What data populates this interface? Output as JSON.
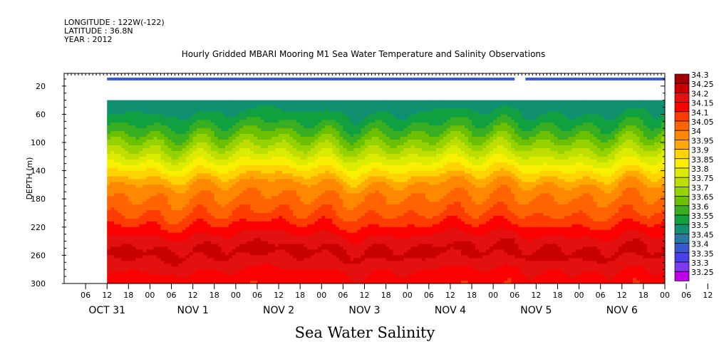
{
  "header": {
    "longitude": "LONGITUDE : 122W(-122)",
    "latitude": "LATITUDE : 36.8N",
    "year": "YEAR : 2012"
  },
  "title": "Hourly Gridded MBARI Mooring M1 Sea Water Temperature and Salinity Observations",
  "subtitle": "Sea Water Salinity",
  "chart_data": {
    "type": "heatmap",
    "variable": "Sea Water Salinity",
    "ylabel": "DEPTH (m)",
    "y_ticks": [
      20,
      60,
      100,
      140,
      180,
      220,
      260,
      300
    ],
    "ylim": [
      300,
      2
    ],
    "x_hour_ticks": [
      "06",
      "12",
      "18",
      "00",
      "06",
      "12",
      "18",
      "00",
      "06",
      "12",
      "18",
      "00",
      "06",
      "12",
      "18",
      "00",
      "06",
      "12",
      "18",
      "00",
      "06",
      "12",
      "18",
      "00",
      "06",
      "12",
      "18",
      "00",
      "06",
      "12",
      "18",
      "00"
    ],
    "x_day_labels": [
      "OCT 31",
      "NOV  1",
      "NOV  2",
      "NOV  3",
      "NOV  4",
      "NOV  5",
      "NOV  6"
    ],
    "colorbar": {
      "levels": [
        "34.3",
        "34.25",
        "34.2",
        "34.15",
        "34.1",
        "34.05",
        "34",
        "33.95",
        "33.9",
        "33.85",
        "33.8",
        "33.75",
        "33.7",
        "33.65",
        "33.6",
        "33.55",
        "33.5",
        "33.45",
        "33.4",
        "33.35",
        "33.3",
        "33.25"
      ],
      "colors": [
        "#a00000",
        "#c80000",
        "#e41010",
        "#fc0000",
        "#ff3c00",
        "#ff6400",
        "#ff8800",
        "#ffaa00",
        "#ffd400",
        "#f8f000",
        "#dcec00",
        "#bede00",
        "#96d200",
        "#6cc000",
        "#38ae20",
        "#10a040",
        "#109070",
        "#2878a0",
        "#3858d0",
        "#4840e8",
        "#8038f0",
        "#c000e8"
      ]
    },
    "profile": [
      {
        "depth": 10,
        "salinity": 33.42
      },
      {
        "depth": 40,
        "salinity": 33.52
      },
      {
        "depth": 60,
        "salinity": 33.56
      },
      {
        "depth": 80,
        "salinity": 33.63
      },
      {
        "depth": 100,
        "salinity": 33.72
      },
      {
        "depth": 120,
        "salinity": 33.82
      },
      {
        "depth": 140,
        "salinity": 33.92
      },
      {
        "depth": 160,
        "salinity": 34.02
      },
      {
        "depth": 180,
        "salinity": 34.06
      },
      {
        "depth": 200,
        "salinity": 34.1
      },
      {
        "depth": 220,
        "salinity": 34.17
      },
      {
        "depth": 240,
        "salinity": 34.24
      },
      {
        "depth": 255,
        "salinity": 34.27
      },
      {
        "depth": 270,
        "salinity": 34.22
      },
      {
        "depth": 290,
        "salinity": 34.18
      },
      {
        "depth": 300,
        "salinity": 34.16
      }
    ],
    "surface_depth_range": [
      8,
      12
    ],
    "surface_gap_hours": [
      126,
      129
    ],
    "data_start_hour": 12,
    "data_end_hour": 186
  }
}
